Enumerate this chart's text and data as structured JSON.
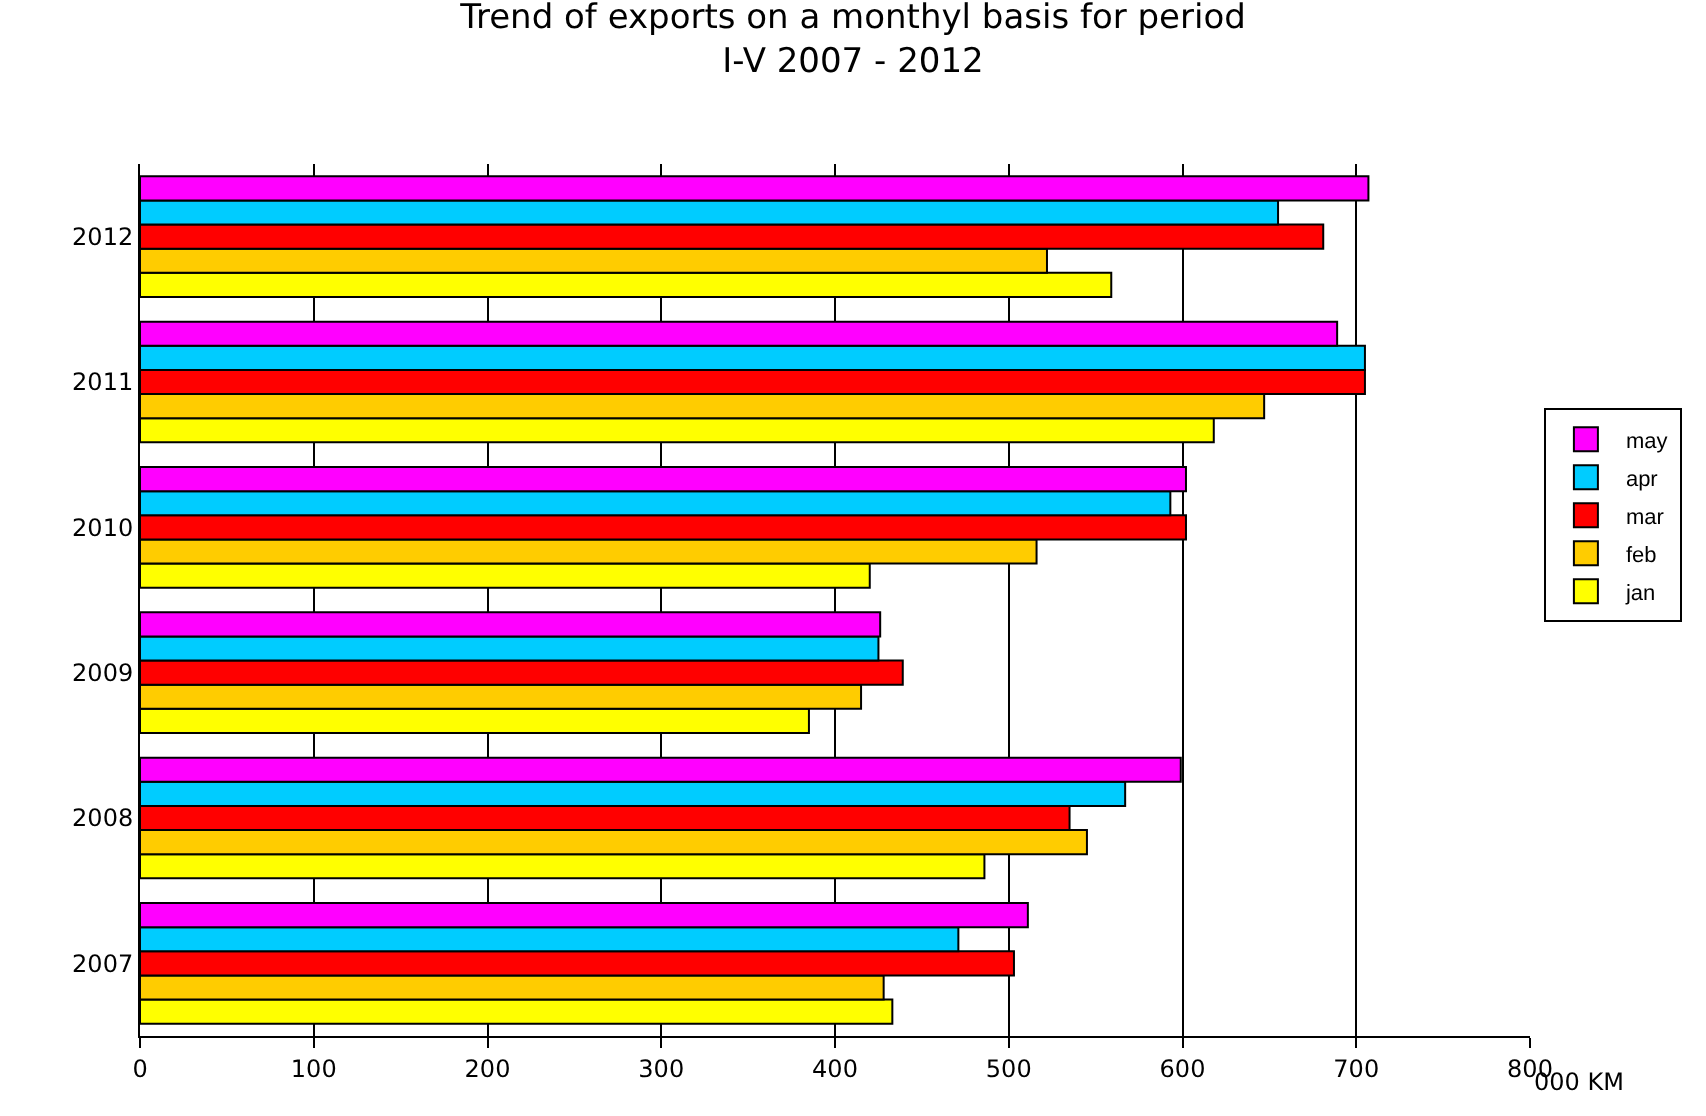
{
  "chart_data": {
    "type": "bar",
    "orientation": "horizontal",
    "title": "Trend of exports on a monthyl basis for period\nI-V 2007 - 2012",
    "xlabel": "000 KM",
    "categories": [
      "2012",
      "2011",
      "2010",
      "2009",
      "2008",
      "2007"
    ],
    "series": [
      {
        "name": "jan",
        "color": "#ffff00",
        "values": [
          559,
          618,
          420,
          385,
          486,
          433
        ]
      },
      {
        "name": "feb",
        "color": "#ffcc00",
        "values": [
          522,
          647,
          516,
          415,
          545,
          428
        ]
      },
      {
        "name": "mar",
        "color": "#ff0000",
        "values": [
          681,
          705,
          602,
          439,
          535,
          503
        ]
      },
      {
        "name": "apr",
        "color": "#00ccff",
        "values": [
          655,
          705,
          593,
          425,
          567,
          471
        ]
      },
      {
        "name": "may",
        "color": "#ff00ff",
        "values": [
          707,
          689,
          602,
          426,
          599,
          511
        ]
      }
    ],
    "xlim": [
      0,
      800
    ],
    "xticks": [
      0,
      100,
      200,
      300,
      400,
      500,
      600,
      700,
      800
    ],
    "grid": "x",
    "legend": "right"
  }
}
